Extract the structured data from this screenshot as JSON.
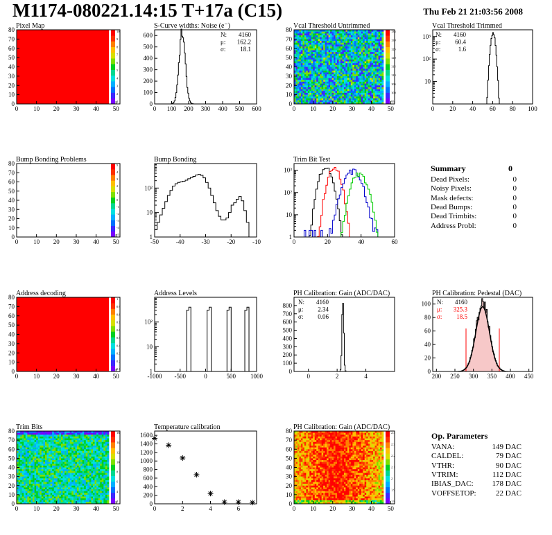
{
  "header": {
    "title": "M1174-080221.14:15 T+17a (C15)",
    "date": "Thu Feb 21 21:03:56 2008"
  },
  "summary": {
    "title": "Summary",
    "total": "0",
    "rows": [
      {
        "label": "Dead Pixels:",
        "value": "0"
      },
      {
        "label": "Noisy Pixels:",
        "value": "0"
      },
      {
        "label": "Mask defects:",
        "value": "0"
      },
      {
        "label": "Dead Bumps:",
        "value": "0"
      },
      {
        "label": "Dead Trimbits:",
        "value": "0"
      },
      {
        "label": "Address Probl:",
        "value": "0"
      }
    ]
  },
  "op_parameters": {
    "title": "Op. Parameters",
    "rows": [
      {
        "label": "VANA:",
        "value": "149 DAC"
      },
      {
        "label": "CALDEL:",
        "value": "79 DAC"
      },
      {
        "label": "VTHR:",
        "value": "90 DAC"
      },
      {
        "label": "VTRIM:",
        "value": "112 DAC"
      },
      {
        "label": "IBIAS_DAC:",
        "value": "178 DAC"
      },
      {
        "label": "VOFFSETOP:",
        "value": "22 DAC"
      }
    ]
  },
  "colors": {
    "hist_line": "#000000",
    "trim_red": "#ff0000",
    "trim_blue": "#0000cc",
    "trim_green": "#00cc00",
    "stat_red": "#ff0000",
    "map_red": "#ff0000"
  },
  "chart_data": [
    {
      "id": "pixel-map",
      "type": "heatmap",
      "title": "Pixel Map",
      "xlim": [
        0,
        52
      ],
      "ylim": [
        0,
        80
      ],
      "xticks": [
        0,
        10,
        20,
        30,
        40,
        50
      ],
      "yticks": [
        0,
        10,
        20,
        30,
        40,
        50,
        60,
        70,
        80
      ],
      "fill": "uniform-max",
      "palette_ticks": [
        "10",
        "9",
        "8",
        "7",
        "6",
        "5",
        "4",
        "3",
        "2",
        "1"
      ]
    },
    {
      "id": "scurve",
      "type": "bar",
      "title": "S-Curve widths: Noise (e⁻)",
      "xlim": [
        0,
        600
      ],
      "ylim": [
        0,
        650
      ],
      "xticks": [
        0,
        100,
        200,
        300,
        400,
        500,
        600
      ],
      "yticks": [
        0,
        100,
        200,
        300,
        400,
        500,
        600
      ],
      "stats": [
        {
          "label": "N:",
          "value": "4160"
        },
        {
          "label": "μ:",
          "value": "162.2"
        },
        {
          "label": "σ:",
          "value": "18.1"
        }
      ],
      "peak": {
        "mean": 162,
        "sigma": 18,
        "height": 620
      }
    },
    {
      "id": "vcal-untrimmed",
      "type": "heatmap",
      "title": "Vcal Threshold Untrimmed",
      "xlim": [
        0,
        52
      ],
      "ylim": [
        0,
        80
      ],
      "xticks": [
        0,
        10,
        20,
        30,
        40,
        50
      ],
      "yticks": [
        0,
        10,
        20,
        30,
        40,
        50,
        60,
        70,
        80
      ],
      "fill": "noise-mid",
      "palette_ticks": [
        "135",
        "130",
        "125",
        "120",
        "115",
        "110",
        "105",
        "100",
        "95"
      ]
    },
    {
      "id": "vcal-trimmed",
      "type": "bar",
      "title": "Vcal Threshold Trimmed",
      "xlim": [
        0,
        100
      ],
      "ylim": [
        1,
        2000
      ],
      "yscale": "log",
      "xticks": [
        0,
        20,
        40,
        60,
        80,
        100
      ],
      "yticks": [
        "10",
        "10²",
        "10³"
      ],
      "stats": [
        {
          "label": "N:",
          "value": "4160"
        },
        {
          "label": "μ:",
          "value": "60.4"
        },
        {
          "label": "σ:",
          "value": "1.6"
        }
      ],
      "peak": {
        "mean": 60.4,
        "sigma": 1.6,
        "height": 1400
      }
    },
    {
      "id": "bump-problems",
      "type": "heatmap",
      "title": "Bump Bonding Problems",
      "xlim": [
        0,
        52
      ],
      "ylim": [
        0,
        80
      ],
      "xticks": [
        0,
        10,
        20,
        30,
        40,
        50
      ],
      "yticks": [
        0,
        10,
        20,
        30,
        40,
        50,
        60,
        70,
        80
      ],
      "fill": "empty",
      "palette_ticks": [
        "5",
        "4",
        "3",
        "2",
        "1",
        "0",
        "-1",
        "-2",
        "-3",
        "-4",
        "-5"
      ]
    },
    {
      "id": "bump-bonding",
      "type": "bar",
      "title": "Bump Bonding",
      "xlim": [
        -50,
        -10
      ],
      "ylim": [
        1,
        1000
      ],
      "yscale": "log",
      "xticks": [
        -50,
        -40,
        -30,
        -20,
        -10
      ],
      "yticks": [
        "1",
        "10",
        "10²"
      ],
      "profile": [
        [
          -50,
          2
        ],
        [
          -49,
          4
        ],
        [
          -48,
          8
        ],
        [
          -47,
          15
        ],
        [
          -46,
          28
        ],
        [
          -45,
          50
        ],
        [
          -44,
          80
        ],
        [
          -43,
          120
        ],
        [
          -42,
          150
        ],
        [
          -41,
          170
        ],
        [
          -40,
          180
        ],
        [
          -39,
          190
        ],
        [
          -38,
          210
        ],
        [
          -37,
          240
        ],
        [
          -36,
          270
        ],
        [
          -35,
          300
        ],
        [
          -34,
          340
        ],
        [
          -33,
          360
        ],
        [
          -32,
          330
        ],
        [
          -31,
          260
        ],
        [
          -30,
          170
        ],
        [
          -29,
          100
        ],
        [
          -28,
          50
        ],
        [
          -27,
          25
        ],
        [
          -26,
          12
        ],
        [
          -25,
          7
        ],
        [
          -24,
          5
        ],
        [
          -23,
          5
        ],
        [
          -22,
          6
        ],
        [
          -21,
          10
        ],
        [
          -20,
          20
        ],
        [
          -19,
          25
        ],
        [
          -18,
          35
        ],
        [
          -17,
          45
        ],
        [
          -16,
          30
        ],
        [
          -15,
          12
        ],
        [
          -14,
          4
        ],
        [
          -13,
          1
        ]
      ]
    },
    {
      "id": "trim-bit-test",
      "type": "line",
      "title": "Trim Bit Test",
      "xlim": [
        0,
        60
      ],
      "ylim": [
        1,
        2000
      ],
      "yscale": "log",
      "xticks": [
        0,
        20,
        40,
        60
      ],
      "yticks": [
        "1",
        "10",
        "10²",
        "10³"
      ],
      "series": [
        {
          "color": "#000000",
          "mean": 19,
          "sigma": 2.5,
          "height": 1400
        },
        {
          "color": "#ff0000",
          "mean": 24,
          "sigma": 2.5,
          "height": 1200
        },
        {
          "color": "#0000cc",
          "mean": 35,
          "sigma": 3.5,
          "height": 900
        },
        {
          "color": "#00cc00",
          "mean": 39,
          "sigma": 3,
          "height": 700
        }
      ]
    },
    {
      "id": "address-decoding",
      "type": "heatmap",
      "title": "Address decoding",
      "xlim": [
        0,
        52
      ],
      "ylim": [
        0,
        80
      ],
      "xticks": [
        0,
        10,
        20,
        30,
        40,
        50
      ],
      "yticks": [
        0,
        10,
        20,
        30,
        40,
        50,
        60,
        70,
        80
      ],
      "fill": "uniform-max",
      "palette_ticks": [
        "1",
        "0.9",
        "0.8",
        "0.7",
        "0.6",
        "0.5",
        "0.4",
        "0.3",
        "0.2",
        "0.1"
      ]
    },
    {
      "id": "address-levels",
      "type": "bar",
      "title": "Address Levels",
      "xlim": [
        -1000,
        1000
      ],
      "ylim": [
        1,
        1000
      ],
      "yscale": "log",
      "xticks": [
        -1000,
        -500,
        0,
        500,
        1000
      ],
      "yticks": [
        "1",
        "10",
        "10²"
      ],
      "spikes": [
        -330,
        70,
        460,
        810
      ]
    },
    {
      "id": "ph-gain",
      "type": "bar",
      "title": "PH Calibration: Gain (ADC/DAC)",
      "xlim": [
        -1,
        6
      ],
      "ylim": [
        0,
        900
      ],
      "xticks": [
        0,
        2,
        4
      ],
      "yticks": [
        0,
        100,
        200,
        300,
        400,
        500,
        600,
        700,
        800
      ],
      "stats": [
        {
          "label": "N:",
          "value": "4160"
        },
        {
          "label": "μ:",
          "value": "2.34"
        },
        {
          "label": "σ:",
          "value": "0.06"
        }
      ],
      "peak": {
        "mean": 2.4,
        "sigma": 0.06,
        "height": 850
      }
    },
    {
      "id": "ph-pedestal",
      "type": "bar",
      "title": "PH Calibration: Pedestal (DAC)",
      "xlim": [
        190,
        460
      ],
      "ylim": [
        0,
        110
      ],
      "xticks": [
        200,
        250,
        300,
        350,
        400,
        450
      ],
      "yticks": [
        0,
        20,
        40,
        60,
        80,
        100
      ],
      "stats": [
        {
          "label": "N:",
          "value": "4160"
        },
        {
          "label": "μ:",
          "value": "325.3",
          "color": "#ff0000"
        },
        {
          "label": "σ:",
          "value": "18.5",
          "color": "#ff0000"
        }
      ],
      "peak": {
        "mean": 325,
        "sigma": 18.5,
        "height": 100
      },
      "cut_lines": [
        280,
        370
      ]
    },
    {
      "id": "trim-bits",
      "type": "heatmap",
      "title": "Trim Bits",
      "xlim": [
        0,
        52
      ],
      "ylim": [
        0,
        80
      ],
      "xticks": [
        0,
        10,
        20,
        30,
        40,
        50
      ],
      "yticks": [
        0,
        10,
        20,
        30,
        40,
        50,
        60,
        70,
        80
      ],
      "fill": "noise-lowmid",
      "palette_ticks": [
        "16",
        "14",
        "12",
        "10",
        "8",
        "6",
        "4",
        "2"
      ]
    },
    {
      "id": "temperature",
      "type": "scatter",
      "title": "Temperature calibration",
      "xlim": [
        0,
        7.3
      ],
      "ylim": [
        0,
        1700
      ],
      "xticks": [
        0,
        2,
        4,
        6
      ],
      "yticks": [
        0,
        200,
        400,
        600,
        800,
        1000,
        1200,
        1400,
        1600
      ],
      "x": [
        0,
        1,
        2,
        3,
        4,
        5,
        6,
        7
      ],
      "y": [
        1530,
        1370,
        1070,
        680,
        240,
        40,
        40,
        30
      ]
    },
    {
      "id": "ph-gain-map",
      "type": "heatmap",
      "title": "PH Calibration: Gain (ADC/DAC)",
      "xlim": [
        0,
        52
      ],
      "ylim": [
        0,
        80
      ],
      "xticks": [
        0,
        10,
        20,
        30,
        40,
        50
      ],
      "yticks": [
        0,
        10,
        20,
        30,
        40,
        50,
        60,
        70,
        80
      ],
      "fill": "noise-high",
      "palette_ticks": [
        "2.4",
        "2.3",
        "2.2",
        "2.1",
        "2",
        "1.9",
        "1.8"
      ]
    }
  ]
}
